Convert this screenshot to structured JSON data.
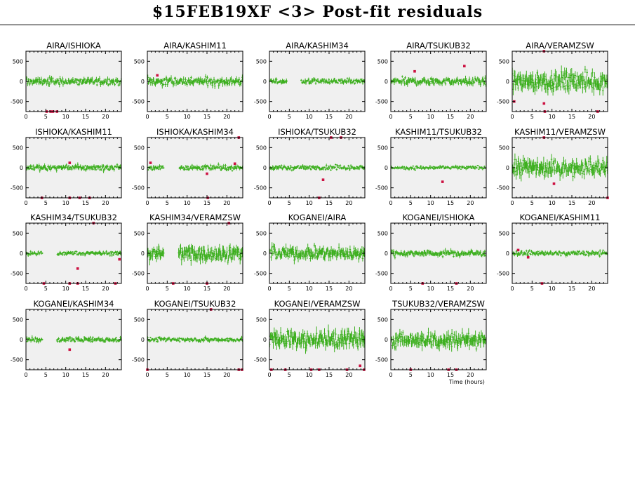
{
  "page": {
    "title": "$15FEB19XF <3> Post-fit residuals"
  },
  "colors": {
    "panel_bg": "#f0f0f0",
    "data": "#3daf1f",
    "outlier": "#cc1141",
    "axis": "#000000"
  },
  "chart_data": [
    {
      "type": "scatter",
      "title": "AIRA/ISHIOKA",
      "xlim": [
        0,
        24
      ],
      "ylim": [
        -750,
        750
      ],
      "yticks": [
        500,
        0,
        -500
      ],
      "yticklabels": [
        "500",
        "0",
        "-500"
      ],
      "xticks": [
        0,
        5,
        10,
        15,
        20
      ],
      "sigma": 70,
      "gaps": [],
      "outliers": [
        [
          5.2,
          -750
        ],
        [
          6.2,
          -750
        ],
        [
          6.8,
          -750
        ],
        [
          7.8,
          -750
        ]
      ]
    },
    {
      "type": "scatter",
      "title": "AIRA/KASHIM11",
      "xlim": [
        0,
        24
      ],
      "ylim": [
        -750,
        750
      ],
      "yticks": [
        500,
        0,
        -500
      ],
      "yticklabels": [
        "500",
        "0",
        "-500"
      ],
      "xticks": [
        0,
        5,
        10,
        15,
        20
      ],
      "sigma": 80,
      "gaps": [],
      "outliers": [
        [
          2.5,
          150
        ]
      ]
    },
    {
      "type": "scatter",
      "title": "AIRA/KASHIM34",
      "xlim": [
        0,
        24
      ],
      "ylim": [
        -750,
        750
      ],
      "yticks": [
        500,
        0,
        -500
      ],
      "yticklabels": [
        "500",
        "0",
        "-500"
      ],
      "xticks": [
        0,
        5,
        10,
        15,
        20
      ],
      "sigma": 50,
      "gaps": [
        [
          4.5,
          8
        ]
      ],
      "outliers": []
    },
    {
      "type": "scatter",
      "title": "AIRA/TSUKUB32",
      "xlim": [
        0,
        24
      ],
      "ylim": [
        -750,
        750
      ],
      "yticks": [
        500,
        0,
        -500
      ],
      "yticklabels": [
        "500",
        "0",
        "-500"
      ],
      "xticks": [
        0,
        5,
        10,
        15,
        20
      ],
      "sigma": 70,
      "gaps": [],
      "outliers": [
        [
          6,
          250
        ],
        [
          18.5,
          380
        ]
      ]
    },
    {
      "type": "scatter",
      "title": "AIRA/VERAMZSW",
      "xlim": [
        0,
        24
      ],
      "ylim": [
        -750,
        750
      ],
      "yticks": [
        500,
        0,
        -500
      ],
      "yticklabels": [
        "500",
        "0",
        "-500"
      ],
      "xticks": [
        0,
        5,
        10,
        15,
        20
      ],
      "sigma": 180,
      "gaps": [],
      "outliers": [
        [
          0.5,
          -500
        ],
        [
          8,
          750
        ],
        [
          8,
          -550
        ],
        [
          8.2,
          -750
        ],
        [
          21.5,
          -750
        ]
      ]
    },
    {
      "type": "scatter",
      "title": "ISHIOKA/KASHIM11",
      "xlim": [
        0,
        24
      ],
      "ylim": [
        -750,
        750
      ],
      "yticks": [
        500,
        0,
        -500
      ],
      "yticklabels": [
        "500",
        "0",
        "-500"
      ],
      "xticks": [
        0,
        5,
        10,
        15,
        20
      ],
      "sigma": 55,
      "gaps": [],
      "outliers": [
        [
          11,
          120
        ],
        [
          11,
          -750
        ],
        [
          13.5,
          -750
        ],
        [
          16,
          -750
        ],
        [
          4,
          -750
        ]
      ]
    },
    {
      "type": "scatter",
      "title": "ISHIOKA/KASHIM34",
      "xlim": [
        0,
        24
      ],
      "ylim": [
        -750,
        750
      ],
      "yticks": [
        500,
        0,
        -500
      ],
      "yticklabels": [
        "500",
        "0",
        "-500"
      ],
      "xticks": [
        0,
        5,
        10,
        15,
        20
      ],
      "sigma": 50,
      "gaps": [
        [
          4.2,
          8
        ]
      ],
      "outliers": [
        [
          0.8,
          120
        ],
        [
          15,
          -150
        ],
        [
          15.2,
          -750
        ],
        [
          22,
          100
        ],
        [
          23,
          750
        ]
      ]
    },
    {
      "type": "scatter",
      "title": "ISHIOKA/TSUKUB32",
      "xlim": [
        0,
        24
      ],
      "ylim": [
        -750,
        750
      ],
      "yticks": [
        500,
        0,
        -500
      ],
      "yticklabels": [
        "500",
        "0",
        "-500"
      ],
      "xticks": [
        0,
        5,
        10,
        15,
        20
      ],
      "sigma": 45,
      "gaps": [],
      "outliers": [
        [
          13.5,
          -300
        ],
        [
          12.5,
          -750
        ],
        [
          15.5,
          750
        ],
        [
          18,
          750
        ]
      ]
    },
    {
      "type": "scatter",
      "title": "KASHIM11/TSUKUB32",
      "xlim": [
        0,
        24
      ],
      "ylim": [
        -750,
        750
      ],
      "yticks": [
        500,
        0,
        -500
      ],
      "yticklabels": [
        "500",
        "0",
        "-500"
      ],
      "xticks": [
        0,
        5,
        10,
        15,
        20
      ],
      "sigma": 35,
      "gaps": [],
      "outliers": [
        [
          13,
          -350
        ]
      ]
    },
    {
      "type": "scatter",
      "title": "KASHIM11/VERAMZSW",
      "xlim": [
        0,
        24
      ],
      "ylim": [
        -750,
        750
      ],
      "yticks": [
        500,
        0,
        -500
      ],
      "yticklabels": [
        "500",
        "0",
        "-500"
      ],
      "xticks": [
        0,
        5,
        10,
        15,
        20
      ],
      "sigma": 160,
      "gaps": [],
      "outliers": [
        [
          10.5,
          -400
        ],
        [
          8,
          750
        ],
        [
          24,
          -750
        ]
      ]
    },
    {
      "type": "scatter",
      "title": "KASHIM34/TSUKUB32",
      "xlim": [
        0,
        24
      ],
      "ylim": [
        -750,
        750
      ],
      "yticks": [
        500,
        0,
        -500
      ],
      "yticklabels": [
        "500",
        "0",
        "-500"
      ],
      "xticks": [
        0,
        5,
        10,
        15,
        20
      ],
      "sigma": 40,
      "gaps": [
        [
          4.2,
          7.8
        ]
      ],
      "outliers": [
        [
          13,
          -380
        ],
        [
          23.5,
          -150
        ],
        [
          4.5,
          -750
        ],
        [
          11,
          -750
        ],
        [
          13,
          -750
        ],
        [
          22.5,
          -750
        ],
        [
          17,
          750
        ]
      ]
    },
    {
      "type": "scatter",
      "title": "KASHIM34/VERAMZSW",
      "xlim": [
        0,
        24
      ],
      "ylim": [
        -750,
        750
      ],
      "yticks": [
        500,
        0,
        -500
      ],
      "yticklabels": [
        "500",
        "0",
        "-500"
      ],
      "xticks": [
        0,
        5,
        10,
        15,
        20
      ],
      "sigma": 150,
      "gaps": [
        [
          4.2,
          7.8
        ]
      ],
      "outliers": [
        [
          6.5,
          -750
        ],
        [
          15,
          -750
        ],
        [
          20.5,
          750
        ]
      ]
    },
    {
      "type": "scatter",
      "title": "KOGANEI/AIRA",
      "xlim": [
        0,
        24
      ],
      "ylim": [
        -750,
        750
      ],
      "yticks": [
        500,
        0,
        -500
      ],
      "yticklabels": [
        "500",
        "0",
        "-500"
      ],
      "xticks": [
        0,
        5,
        10,
        15,
        20
      ],
      "sigma": 120,
      "gaps": [],
      "outliers": []
    },
    {
      "type": "scatter",
      "title": "KOGANEI/ISHIOKA",
      "xlim": [
        0,
        24
      ],
      "ylim": [
        -750,
        750
      ],
      "yticks": [
        500,
        0,
        -500
      ],
      "yticklabels": [
        "500",
        "0",
        "-500"
      ],
      "xticks": [
        0,
        5,
        10,
        15,
        20
      ],
      "sigma": 60,
      "gaps": [],
      "outliers": [
        [
          8,
          -750
        ],
        [
          16.5,
          -750
        ]
      ]
    },
    {
      "type": "scatter",
      "title": "KOGANEI/KASHIM11",
      "xlim": [
        0,
        24
      ],
      "ylim": [
        -750,
        750
      ],
      "yticks": [
        500,
        0,
        -500
      ],
      "yticklabels": [
        "500",
        "0",
        "-500"
      ],
      "xticks": [
        0,
        5,
        10,
        15,
        20
      ],
      "sigma": 45,
      "gaps": [],
      "outliers": [
        [
          1.5,
          80
        ],
        [
          4,
          -100
        ],
        [
          7.5,
          -750
        ]
      ]
    },
    {
      "type": "scatter",
      "title": "KOGANEI/KASHIM34",
      "xlim": [
        0,
        24
      ],
      "ylim": [
        -750,
        750
      ],
      "yticks": [
        500,
        0,
        -500
      ],
      "yticklabels": [
        "500",
        "0",
        "-500"
      ],
      "xticks": [
        0,
        5,
        10,
        15,
        20
      ],
      "sigma": 50,
      "gaps": [
        [
          4.2,
          7.8
        ]
      ],
      "outliers": [
        [
          11,
          -250
        ]
      ]
    },
    {
      "type": "scatter",
      "title": "KOGANEI/TSUKUB32",
      "xlim": [
        0,
        24
      ],
      "ylim": [
        -750,
        750
      ],
      "yticks": [
        500,
        0,
        -500
      ],
      "yticklabels": [
        "500",
        "0",
        "-500"
      ],
      "xticks": [
        0,
        5,
        10,
        15,
        20
      ],
      "sigma": 40,
      "gaps": [],
      "outliers": [
        [
          0,
          -750
        ],
        [
          16,
          750
        ],
        [
          23,
          -750
        ],
        [
          23.8,
          -750
        ]
      ]
    },
    {
      "type": "scatter",
      "title": "KOGANEI/VERAMZSW",
      "xlim": [
        0,
        24
      ],
      "ylim": [
        -750,
        750
      ],
      "yticks": [
        500,
        0,
        -500
      ],
      "yticklabels": [
        "500",
        "0",
        "-500"
      ],
      "xticks": [
        0,
        5,
        10,
        15,
        20
      ],
      "sigma": 170,
      "gaps": [],
      "outliers": [
        [
          0.5,
          -750
        ],
        [
          4,
          -750
        ],
        [
          10.5,
          -750
        ],
        [
          12.5,
          -750
        ],
        [
          19.5,
          -750
        ],
        [
          22.8,
          -650
        ],
        [
          23.8,
          -750
        ]
      ]
    },
    {
      "type": "scatter",
      "title": "TSUKUB32/VERAMZSW",
      "xlim": [
        0,
        24
      ],
      "ylim": [
        -750,
        750
      ],
      "yticks": [
        500,
        0,
        -500
      ],
      "yticklabels": [
        "500",
        "0",
        "-500"
      ],
      "xticks": [
        0,
        5,
        10,
        15,
        20
      ],
      "sigma": 150,
      "gaps": [],
      "outliers": [
        [
          5,
          -750
        ],
        [
          14.5,
          -750
        ],
        [
          16.5,
          -750
        ]
      ],
      "xlabel": "Time (hours)"
    }
  ]
}
